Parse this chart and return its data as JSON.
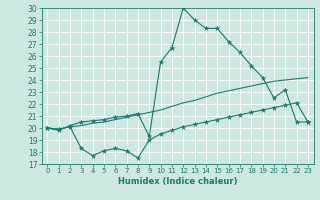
{
  "title": "",
  "xlabel": "Humidex (Indice chaleur)",
  "ylabel": "",
  "bg_color": "#cde8e1",
  "grid_color": "#ffffff",
  "line_color": "#1a7a6e",
  "ylim": [
    17,
    30
  ],
  "xlim": [
    -0.5,
    23.5
  ],
  "yticks": [
    17,
    18,
    19,
    20,
    21,
    22,
    23,
    24,
    25,
    26,
    27,
    28,
    29,
    30
  ],
  "xticks": [
    0,
    1,
    2,
    3,
    4,
    5,
    6,
    7,
    8,
    9,
    10,
    11,
    12,
    13,
    14,
    15,
    16,
    17,
    18,
    19,
    20,
    21,
    22,
    23
  ],
  "curve1_x": [
    0,
    1,
    2,
    3,
    4,
    5,
    6,
    7,
    8,
    9,
    10,
    11,
    12,
    13,
    14,
    15,
    16,
    17,
    18,
    19,
    20,
    21,
    22,
    23
  ],
  "curve1_y": [
    20.0,
    19.8,
    20.2,
    20.5,
    20.6,
    20.7,
    20.9,
    21.0,
    21.2,
    19.3,
    25.5,
    26.7,
    30.0,
    29.0,
    28.3,
    28.3,
    27.2,
    26.3,
    25.2,
    24.2,
    22.5,
    23.2,
    20.5,
    20.5
  ],
  "curve2_x": [
    0,
    1,
    2,
    3,
    4,
    5,
    6,
    7,
    8,
    9,
    10,
    11,
    12,
    13,
    14,
    15,
    16,
    17,
    18,
    19,
    20,
    21,
    22,
    23
  ],
  "curve2_y": [
    20.0,
    19.9,
    20.1,
    20.2,
    20.4,
    20.5,
    20.7,
    20.9,
    21.1,
    21.3,
    21.5,
    21.8,
    22.1,
    22.3,
    22.6,
    22.9,
    23.1,
    23.3,
    23.5,
    23.7,
    23.9,
    24.0,
    24.1,
    24.2
  ],
  "curve3_x": [
    0,
    1,
    2,
    3,
    4,
    5,
    6,
    7,
    8,
    9,
    10,
    11,
    12,
    13,
    14,
    15,
    16,
    17,
    18,
    19,
    20,
    21,
    22,
    23
  ],
  "curve3_y": [
    20.0,
    19.9,
    20.1,
    18.3,
    17.7,
    18.1,
    18.3,
    18.1,
    17.5,
    19.0,
    19.5,
    19.8,
    20.1,
    20.3,
    20.5,
    20.7,
    20.9,
    21.1,
    21.3,
    21.5,
    21.7,
    21.9,
    22.1,
    20.5
  ],
  "xlabel_fontsize": 6.0,
  "ytick_fontsize": 5.5,
  "xtick_fontsize": 5.0
}
